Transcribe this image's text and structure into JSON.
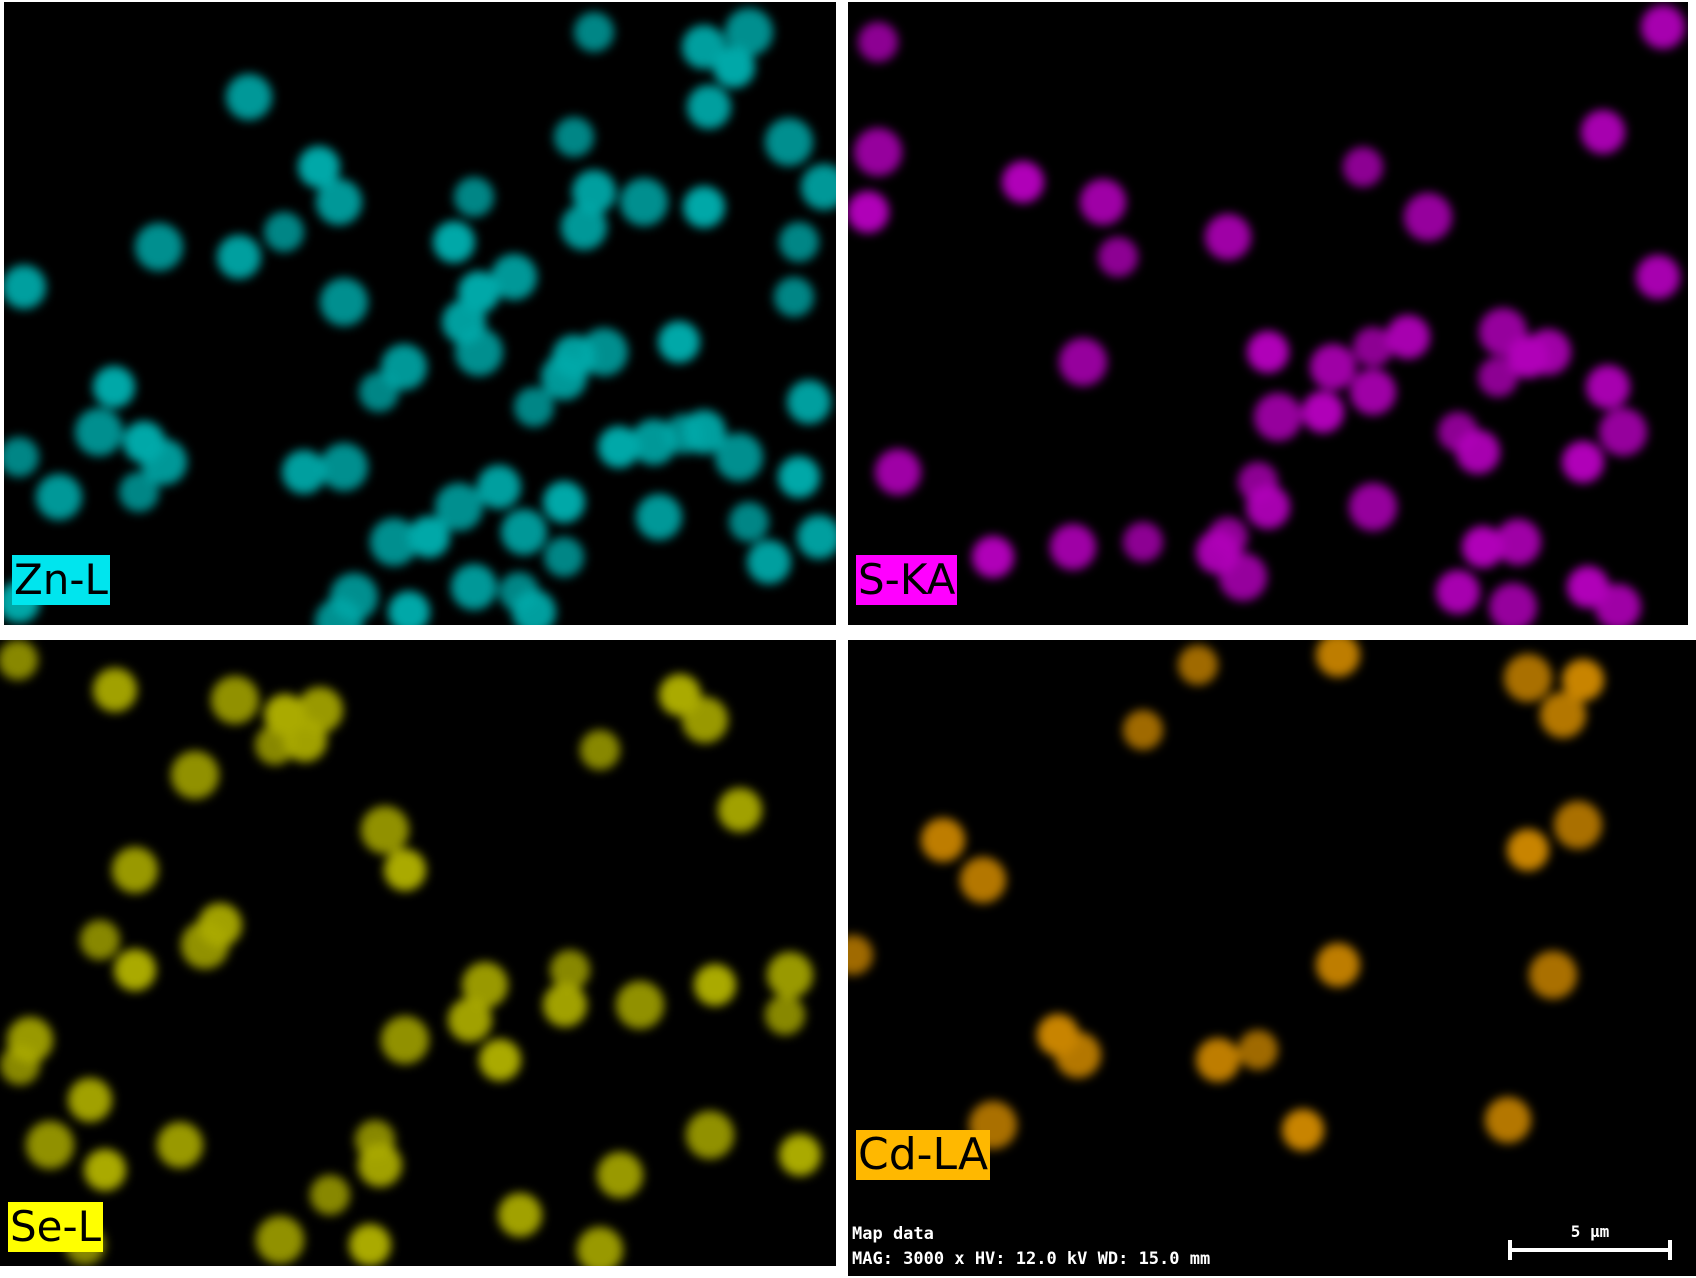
{
  "panels": [
    {
      "label": "Zn-L",
      "label_bg": "#00e5ee",
      "dot_color": "#00a8a8"
    },
    {
      "label": "S-KA",
      "label_bg": "#ff00ff",
      "dot_color": "#b000b8"
    },
    {
      "label": "Se-L",
      "label_bg": "#ffff00",
      "dot_color": "#aaaa00"
    },
    {
      "label": "Cd-LA",
      "label_bg": "#ffb800",
      "dot_color": "#c88400"
    }
  ],
  "map_info": {
    "line1": "Map data",
    "line2": "MAG: 3000 x  HV: 12.0 kV  WD: 15.0 mm"
  },
  "scale_bar": {
    "label": "5 µm"
  }
}
